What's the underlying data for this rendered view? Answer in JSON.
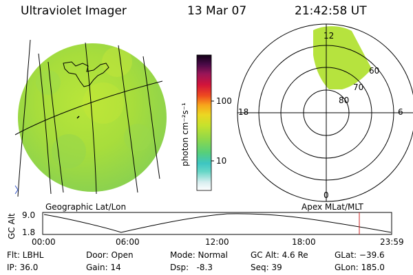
{
  "header": {
    "instrument": "Ultraviolet Imager",
    "date": "13 Mar 07",
    "time": "21:42:58 UT"
  },
  "colorbar": {
    "unit_label": "photon cm⁻²s⁻¹",
    "ticks": [
      "100",
      "10"
    ]
  },
  "left_panel": {
    "caption": "Geographic Lat/Lon"
  },
  "polar_plot": {
    "caption": "Apex MLat/MLT",
    "mlt_labels": {
      "top": "12",
      "left": "18",
      "right": "6",
      "bottom": "0"
    },
    "lat_labels": [
      "80",
      "70",
      "60"
    ]
  },
  "altitude_plot": {
    "ylabel": "GC Alt",
    "yticks": [
      "9.0",
      "1.8"
    ],
    "xticks": [
      "00:00",
      "06:00",
      "12:00",
      "18:00",
      "23:59"
    ],
    "marker_color": "#cc2222"
  },
  "info": {
    "filter": "Flt: LBHL",
    "door": "Door: Open",
    "mode": "Mode: Normal",
    "gc_alt": "GC Alt: 4.6 Re",
    "glat": "GLat: −39.6",
    "ip": "IP: 36.0",
    "gain": "Gain: 14",
    "dsp": "Dsp:   -8.3",
    "seq": "Seq: 39",
    "glon": "GLon: 185.0"
  }
}
